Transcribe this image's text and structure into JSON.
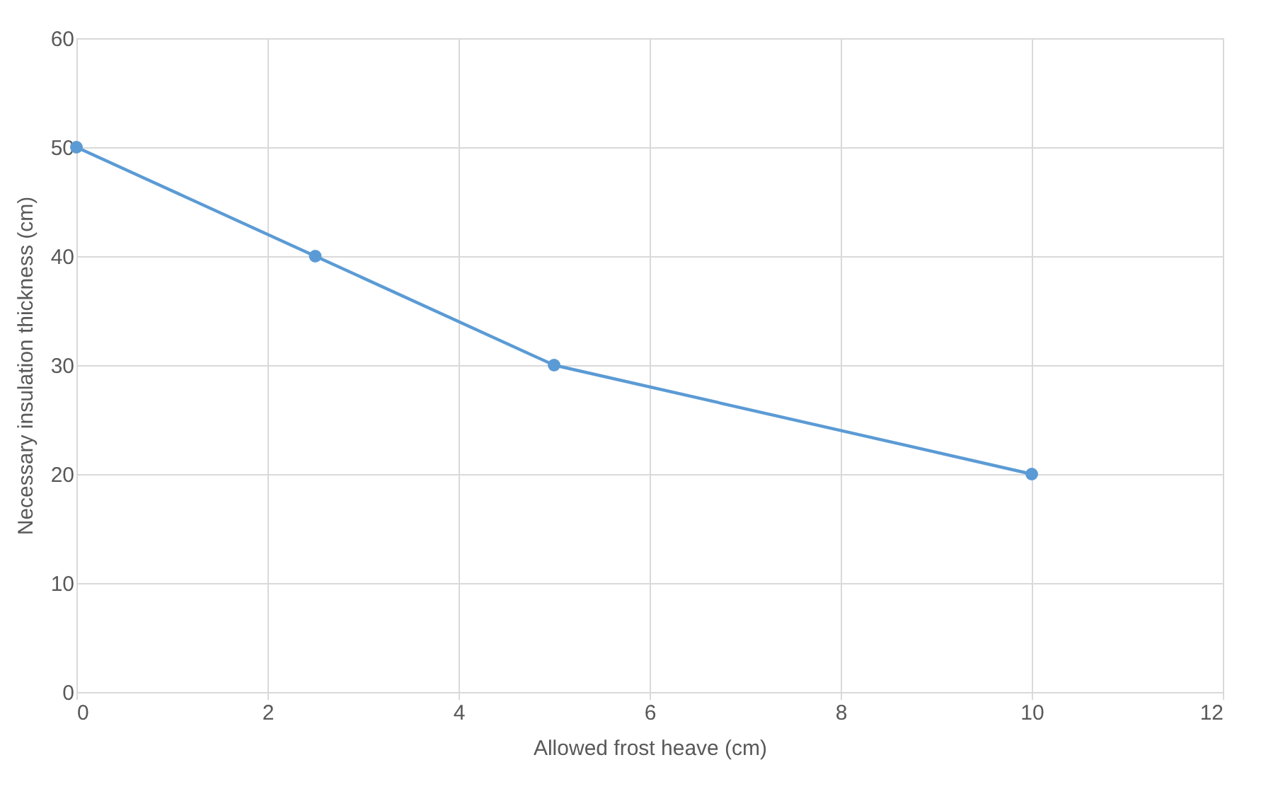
{
  "chart_data": {
    "type": "line",
    "xlabel": "Allowed frost heave (cm)",
    "ylabel": "Necessary insulation thickness (cm)",
    "x": [
      0,
      2.5,
      5,
      10
    ],
    "series": [
      {
        "color": "#5b9bd5",
        "values": [
          50,
          40,
          30,
          20
        ]
      }
    ],
    "xlim": [
      0,
      12
    ],
    "xticks": [
      0,
      2,
      4,
      6,
      8,
      10,
      12
    ],
    "ylim": [
      0,
      60
    ],
    "yticks": [
      0,
      10,
      20,
      30,
      40,
      50,
      60
    ],
    "grid": true,
    "marker": "circle",
    "line_style": "solid"
  }
}
